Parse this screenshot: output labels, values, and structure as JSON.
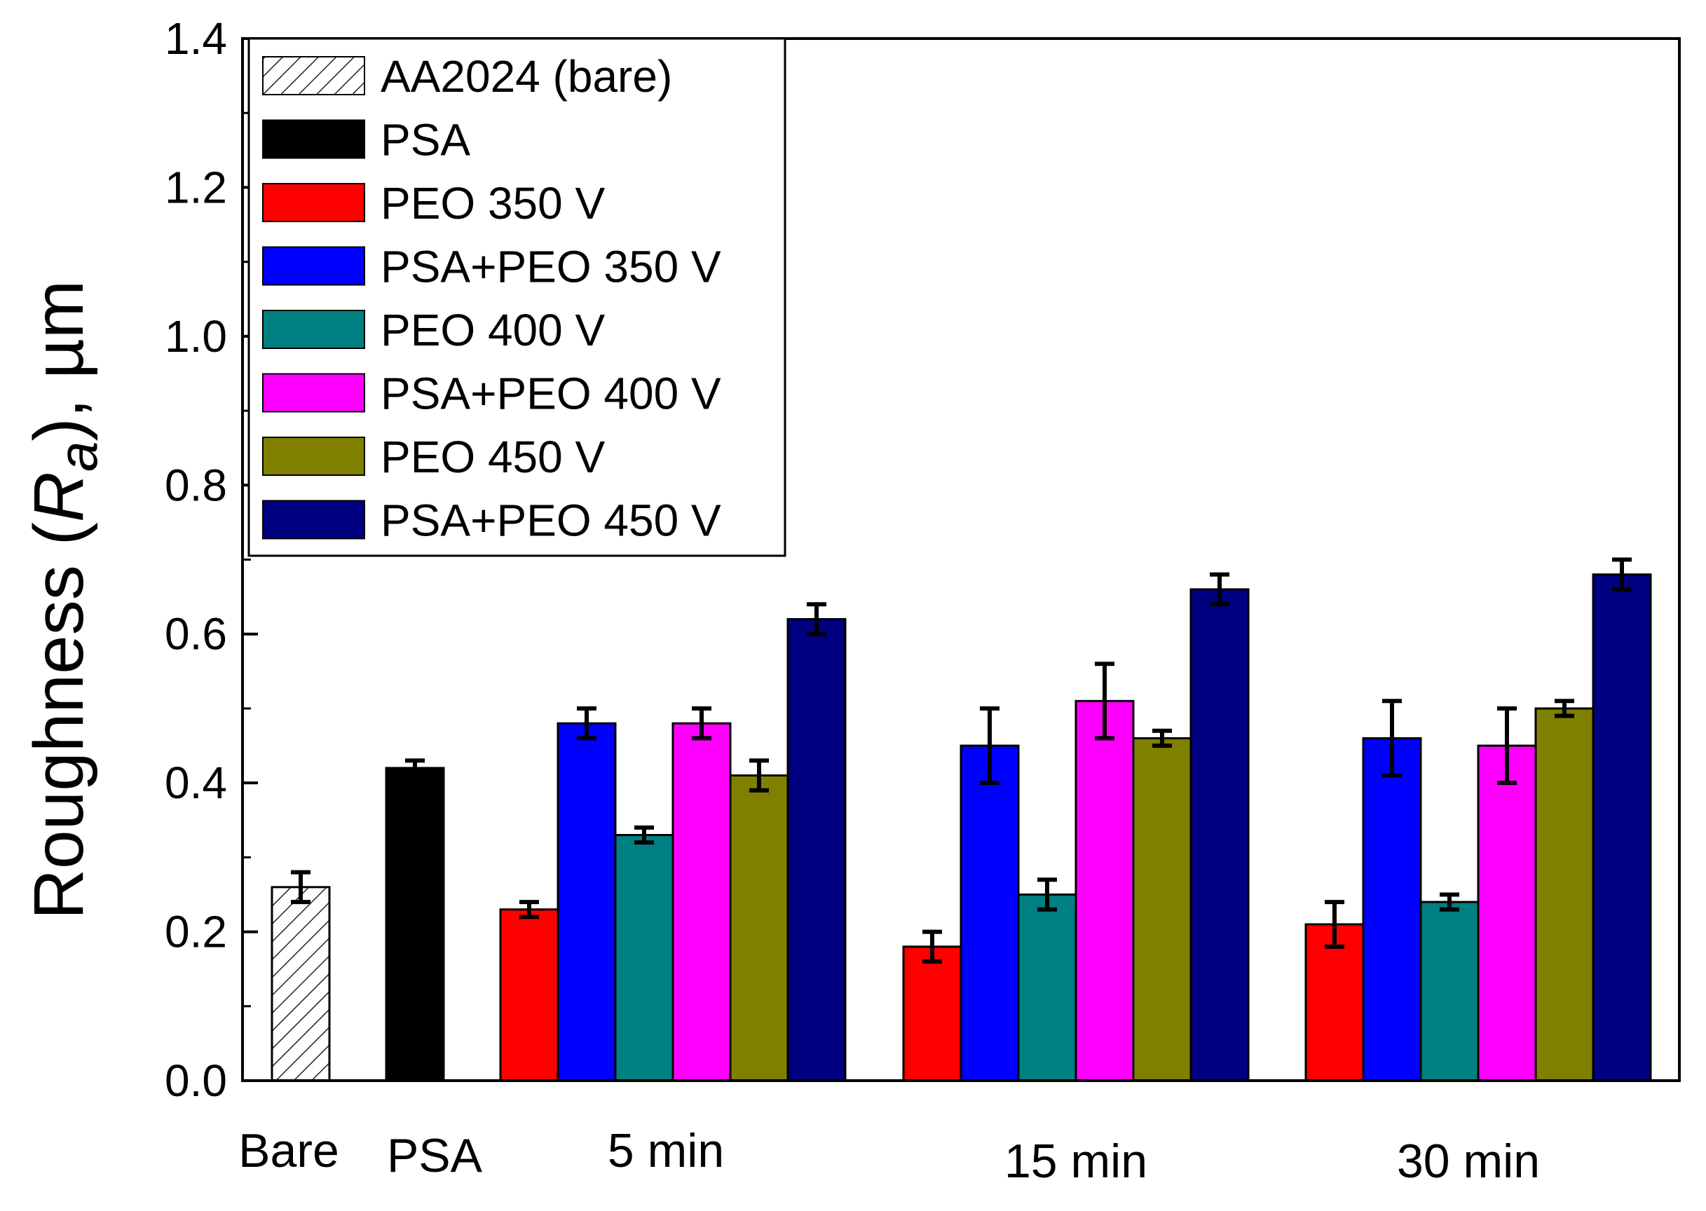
{
  "chart_data": {
    "type": "bar",
    "title": "",
    "xlabel": "",
    "ylabel": "Roughness (Ra), µm",
    "ylabel_parts": {
      "prefix": "Roughness (",
      "symbol": "R",
      "subscript": "a",
      "suffix": "), µm"
    },
    "ylim": [
      0.0,
      1.4
    ],
    "yticks": [
      "0.0",
      "0.2",
      "0.4",
      "0.6",
      "0.8",
      "1.0",
      "1.2",
      "1.4"
    ],
    "legend_position": "top-left",
    "groups": [
      {
        "label": "Bare",
        "bars": [
          {
            "series": "AA2024 (bare)",
            "value": 0.26,
            "error": 0.02
          }
        ]
      },
      {
        "label": "PSA",
        "bars": [
          {
            "series": "PSA",
            "value": 0.42,
            "error": 0.01
          }
        ]
      },
      {
        "label": "5 min",
        "bars": [
          {
            "series": "PEO 350 V",
            "value": 0.23,
            "error": 0.01
          },
          {
            "series": "PSA+PEO 350 V",
            "value": 0.48,
            "error": 0.02
          },
          {
            "series": "PEO 400 V",
            "value": 0.33,
            "error": 0.01
          },
          {
            "series": "PSA+PEO 400 V",
            "value": 0.48,
            "error": 0.02
          },
          {
            "series": "PEO 450 V",
            "value": 0.41,
            "error": 0.02
          },
          {
            "series": "PSA+PEO 450 V",
            "value": 0.62,
            "error": 0.02
          }
        ]
      },
      {
        "label": "15 min",
        "bars": [
          {
            "series": "PEO 350 V",
            "value": 0.18,
            "error": 0.02
          },
          {
            "series": "PSA+PEO 350 V",
            "value": 0.45,
            "error": 0.05
          },
          {
            "series": "PEO 400 V",
            "value": 0.25,
            "error": 0.02
          },
          {
            "series": "PSA+PEO 400 V",
            "value": 0.51,
            "error": 0.05
          },
          {
            "series": "PEO 450 V",
            "value": 0.46,
            "error": 0.01
          },
          {
            "series": "PSA+PEO 450 V",
            "value": 0.66,
            "error": 0.02
          }
        ]
      },
      {
        "label": "30 min",
        "bars": [
          {
            "series": "PEO 350 V",
            "value": 0.21,
            "error": 0.03
          },
          {
            "series": "PSA+PEO 350 V",
            "value": 0.46,
            "error": 0.05
          },
          {
            "series": "PEO 400 V",
            "value": 0.24,
            "error": 0.01
          },
          {
            "series": "PSA+PEO 400 V",
            "value": 0.45,
            "error": 0.05
          },
          {
            "series": "PEO 450 V",
            "value": 0.5,
            "error": 0.01
          },
          {
            "series": "PSA+PEO 450 V",
            "value": 0.68,
            "error": 0.02
          }
        ]
      }
    ],
    "series": [
      {
        "name": "AA2024 (bare)",
        "color": "#ffffff",
        "pattern": "hatch"
      },
      {
        "name": "PSA",
        "color": "#000000"
      },
      {
        "name": "PEO 350 V",
        "color": "#ff0000"
      },
      {
        "name": "PSA+PEO 350 V",
        "color": "#0000ff"
      },
      {
        "name": "PEO 400 V",
        "color": "#008080"
      },
      {
        "name": "PSA+PEO 400 V",
        "color": "#ff00ff"
      },
      {
        "name": "PEO 450 V",
        "color": "#808000"
      },
      {
        "name": "PSA+PEO 450 V",
        "color": "#000080"
      }
    ]
  }
}
